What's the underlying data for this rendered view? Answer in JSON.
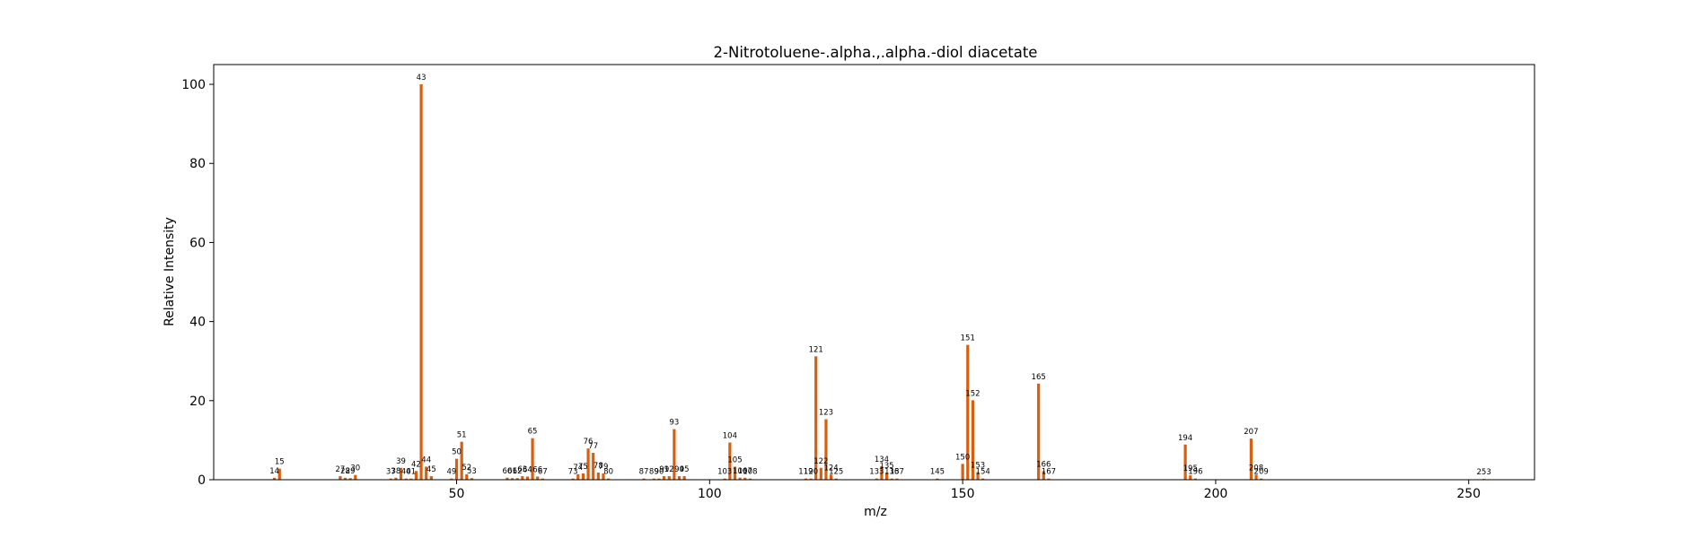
{
  "chart_data": {
    "type": "bar",
    "title": "2-Nitrotoluene-.alpha.,.alpha.-diol diacetate",
    "xlabel": "m/z",
    "ylabel": "Relative Intensity",
    "xlim": [
      2,
      263
    ],
    "ylim": [
      0,
      105
    ],
    "xticks": [
      50,
      100,
      150,
      200,
      250
    ],
    "yticks": [
      0,
      20,
      40,
      60,
      80,
      100
    ],
    "bar_color": "#d95f0e",
    "grid": false,
    "peaks": [
      {
        "mz": 14,
        "intensity": 0.5
      },
      {
        "mz": 15,
        "intensity": 2.8
      },
      {
        "mz": 27,
        "intensity": 0.9
      },
      {
        "mz": 28,
        "intensity": 0.5
      },
      {
        "mz": 29,
        "intensity": 0.4
      },
      {
        "mz": 30,
        "intensity": 1.2
      },
      {
        "mz": 37,
        "intensity": 0.3
      },
      {
        "mz": 38,
        "intensity": 0.5
      },
      {
        "mz": 39,
        "intensity": 3.0
      },
      {
        "mz": 40,
        "intensity": 0.3
      },
      {
        "mz": 41,
        "intensity": 0.3
      },
      {
        "mz": 42,
        "intensity": 2.2
      },
      {
        "mz": 43,
        "intensity": 100
      },
      {
        "mz": 44,
        "intensity": 3.3
      },
      {
        "mz": 45,
        "intensity": 0.9
      },
      {
        "mz": 49,
        "intensity": 0.3
      },
      {
        "mz": 50,
        "intensity": 5.3
      },
      {
        "mz": 51,
        "intensity": 9.6
      },
      {
        "mz": 52,
        "intensity": 1.4
      },
      {
        "mz": 53,
        "intensity": 0.4
      },
      {
        "mz": 60,
        "intensity": 0.5
      },
      {
        "mz": 61,
        "intensity": 0.4
      },
      {
        "mz": 62,
        "intensity": 0.4
      },
      {
        "mz": 63,
        "intensity": 0.9
      },
      {
        "mz": 64,
        "intensity": 0.8
      },
      {
        "mz": 65,
        "intensity": 10.5
      },
      {
        "mz": 66,
        "intensity": 0.8
      },
      {
        "mz": 67,
        "intensity": 0.3
      },
      {
        "mz": 73,
        "intensity": 0.3
      },
      {
        "mz": 74,
        "intensity": 1.4
      },
      {
        "mz": 75,
        "intensity": 1.6
      },
      {
        "mz": 76,
        "intensity": 7.9
      },
      {
        "mz": 77,
        "intensity": 6.8
      },
      {
        "mz": 78,
        "intensity": 1.8
      },
      {
        "mz": 79,
        "intensity": 1.6
      },
      {
        "mz": 80,
        "intensity": 0.3
      },
      {
        "mz": 87,
        "intensity": 0.3
      },
      {
        "mz": 89,
        "intensity": 0.3
      },
      {
        "mz": 90,
        "intensity": 0.3
      },
      {
        "mz": 91,
        "intensity": 0.9
      },
      {
        "mz": 92,
        "intensity": 0.9
      },
      {
        "mz": 93,
        "intensity": 12.8
      },
      {
        "mz": 94,
        "intensity": 0.9
      },
      {
        "mz": 95,
        "intensity": 0.9
      },
      {
        "mz": 103,
        "intensity": 0.3
      },
      {
        "mz": 104,
        "intensity": 9.4
      },
      {
        "mz": 105,
        "intensity": 3.3
      },
      {
        "mz": 106,
        "intensity": 0.5
      },
      {
        "mz": 107,
        "intensity": 0.5
      },
      {
        "mz": 108,
        "intensity": 0.3
      },
      {
        "mz": 119,
        "intensity": 0.3
      },
      {
        "mz": 120,
        "intensity": 0.3
      },
      {
        "mz": 121,
        "intensity": 31.2
      },
      {
        "mz": 122,
        "intensity": 3.0
      },
      {
        "mz": 123,
        "intensity": 15.3
      },
      {
        "mz": 124,
        "intensity": 1.3
      },
      {
        "mz": 125,
        "intensity": 0.3
      },
      {
        "mz": 133,
        "intensity": 0.3
      },
      {
        "mz": 134,
        "intensity": 3.4
      },
      {
        "mz": 135,
        "intensity": 1.8
      },
      {
        "mz": 136,
        "intensity": 0.3
      },
      {
        "mz": 137,
        "intensity": 0.3
      },
      {
        "mz": 145,
        "intensity": 0.3
      },
      {
        "mz": 150,
        "intensity": 4.0
      },
      {
        "mz": 151,
        "intensity": 34.1
      },
      {
        "mz": 152,
        "intensity": 20.1
      },
      {
        "mz": 153,
        "intensity": 1.9
      },
      {
        "mz": 154,
        "intensity": 0.3
      },
      {
        "mz": 165,
        "intensity": 24.3
      },
      {
        "mz": 166,
        "intensity": 2.2
      },
      {
        "mz": 167,
        "intensity": 0.3
      },
      {
        "mz": 194,
        "intensity": 8.9
      },
      {
        "mz": 195,
        "intensity": 1.1
      },
      {
        "mz": 196,
        "intensity": 0.3
      },
      {
        "mz": 207,
        "intensity": 10.4
      },
      {
        "mz": 208,
        "intensity": 1.3
      },
      {
        "mz": 209,
        "intensity": 0.3
      },
      {
        "mz": 253,
        "intensity": 0.2
      }
    ]
  }
}
